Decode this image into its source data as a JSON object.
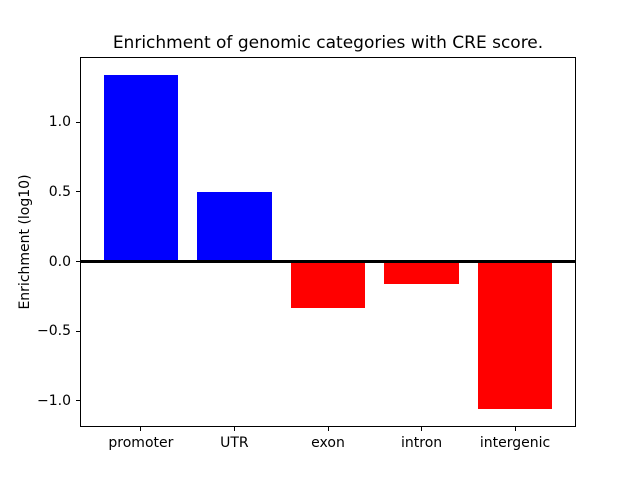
{
  "figure": {
    "background": "#ffffff",
    "axes_edge_color": "#000000",
    "text_color": "#000000"
  },
  "chart_data": {
    "type": "bar",
    "title": "Enrichment of genomic categories with CRE score.",
    "xlabel": "",
    "ylabel": "Enrichment (log10)",
    "categories": [
      "promoter",
      "UTR",
      "exon",
      "intron",
      "intergenic"
    ],
    "values": [
      1.34,
      0.5,
      -0.33,
      -0.16,
      -1.06
    ],
    "bar_colors": [
      "#0000ff",
      "#0000ff",
      "#ff0000",
      "#ff0000",
      "#ff0000"
    ],
    "positive_color": "#0000ff",
    "negative_color": "#ff0000",
    "ylim": [
      -1.18,
      1.46
    ],
    "ytick_values": [
      1.0,
      0.5,
      0.0,
      -0.5,
      -1.0
    ],
    "ytick_labels": [
      "1.0",
      "0.5",
      "0.0",
      "−0.5",
      "−1.0"
    ],
    "bar_width_fraction": 0.8,
    "x_margin_fraction": 0.05,
    "zero_line": true,
    "grid": false,
    "legend": "none"
  }
}
